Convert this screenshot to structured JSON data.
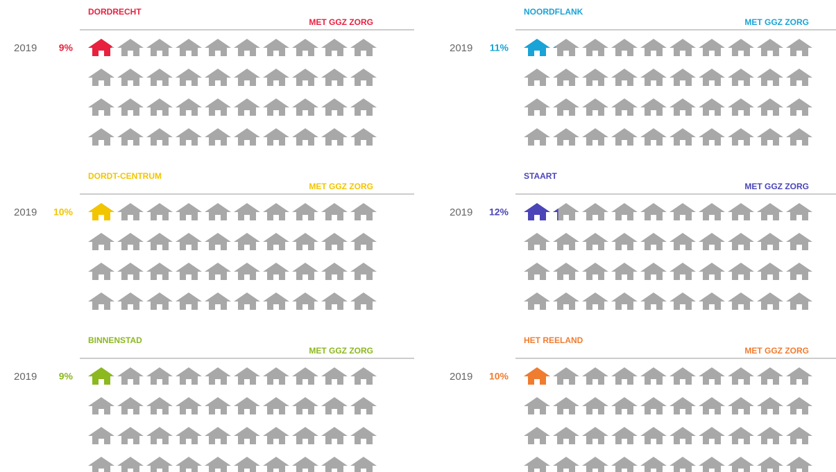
{
  "chart_data": [
    {
      "type": "pictogram",
      "title": "DORDRECHT",
      "subtitle": "MET GGZ ZORG",
      "categories": [
        "2019"
      ],
      "values": [
        9
      ],
      "value_labels": [
        "9%"
      ],
      "color": "#e8213f"
    },
    {
      "type": "pictogram",
      "title": "NOORDFLANK",
      "subtitle": "MET GGZ ZORG",
      "categories": [
        "2019"
      ],
      "values": [
        11
      ],
      "value_labels": [
        "11%"
      ],
      "color": "#1aa3d6"
    },
    {
      "type": "pictogram",
      "title": "DORDT-CENTRUM",
      "subtitle": "MET GGZ ZORG",
      "categories": [
        "2019"
      ],
      "values": [
        10
      ],
      "value_labels": [
        "10%"
      ],
      "color": "#f2c500"
    },
    {
      "type": "pictogram",
      "title": "STAART",
      "subtitle": "MET GGZ ZORG",
      "categories": [
        "2019"
      ],
      "values": [
        12
      ],
      "value_labels": [
        "12%"
      ],
      "color": "#4b45b8"
    },
    {
      "type": "pictogram",
      "title": "BINNENSTAD",
      "subtitle": "MET GGZ ZORG",
      "categories": [
        "2019"
      ],
      "values": [
        9
      ],
      "value_labels": [
        "9%"
      ],
      "color": "#8cb820"
    },
    {
      "type": "pictogram",
      "title": "HET REELAND",
      "subtitle": "MET GGZ ZORG",
      "categories": [
        "2019"
      ],
      "values": [
        10
      ],
      "value_labels": [
        "10%"
      ],
      "color": "#f07c30"
    }
  ]
}
